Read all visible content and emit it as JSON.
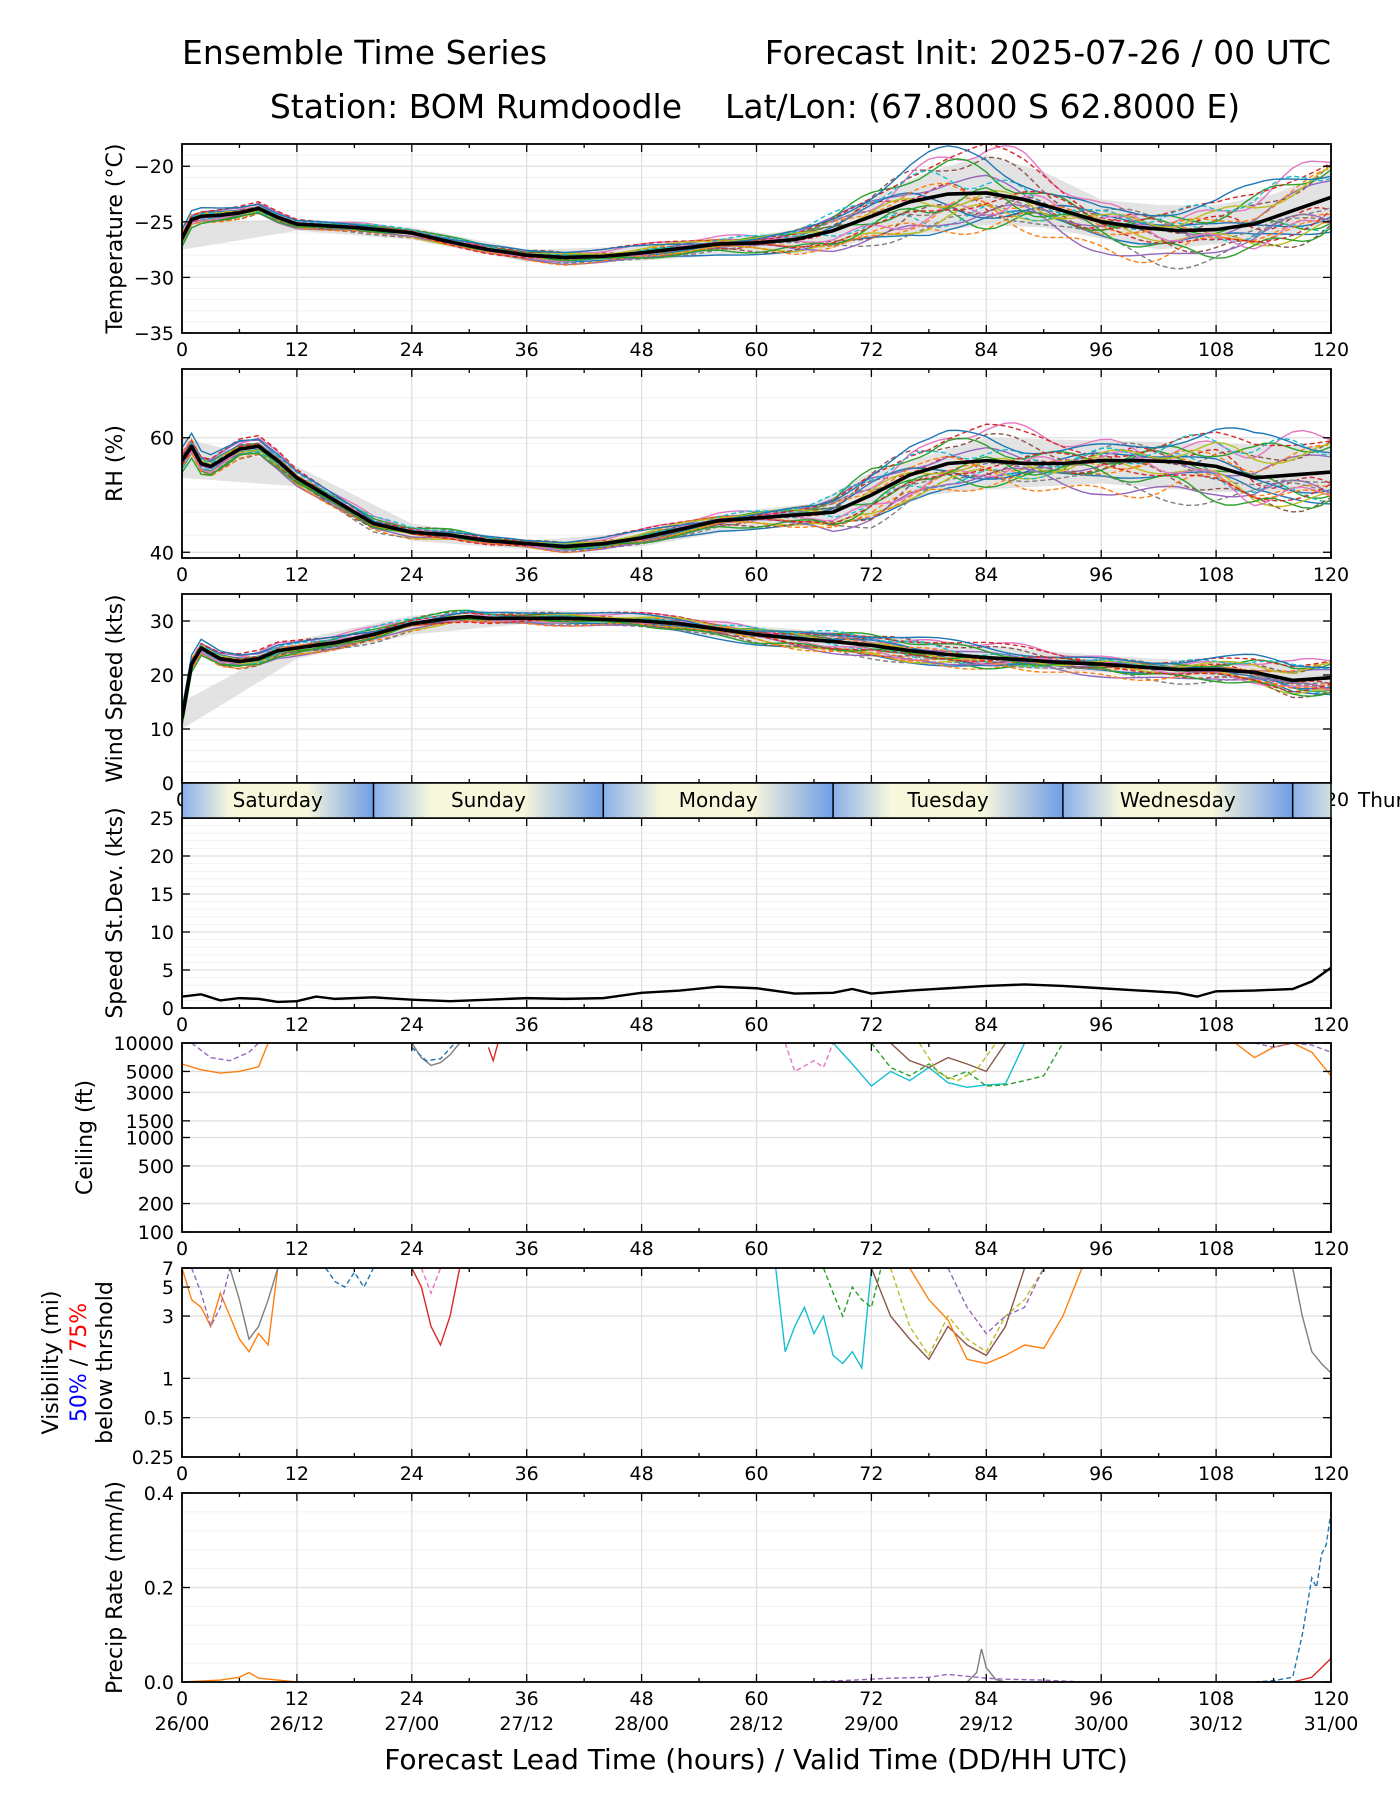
{
  "header": {
    "title_left": "Ensemble Time Series",
    "title_right": "Forecast Init: 2025-07-26 / 00 UTC",
    "station": "Station: BOM Rumdoodle",
    "latlon": "Lat/Lon: (67.8000 S 62.8000 E)"
  },
  "x_axis": {
    "label": "Forecast Lead Time (hours) / Valid Time (DD/HH UTC)",
    "range": [
      0,
      120
    ],
    "ticks": [
      0,
      12,
      24,
      36,
      48,
      60,
      72,
      84,
      96,
      108,
      120
    ],
    "valid_times": [
      "26/00",
      "26/12",
      "27/00",
      "27/12",
      "28/00",
      "28/12",
      "29/00",
      "29/12",
      "30/00",
      "30/12",
      "31/00"
    ]
  },
  "day_band": {
    "days": [
      {
        "label": "Saturday",
        "start": 0,
        "end": 20
      },
      {
        "label": "Sunday",
        "start": 20,
        "end": 44
      },
      {
        "label": "Monday",
        "start": 44,
        "end": 68
      },
      {
        "label": "Tuesday",
        "start": 68,
        "end": 92
      },
      {
        "label": "Wednesday",
        "start": 92,
        "end": 116
      },
      {
        "label": "Thur",
        "start": 116,
        "end": 140
      }
    ]
  },
  "colors": {
    "mean": "#000000",
    "spread": "#d9d9d9",
    "grid": "#e0e0e0",
    "members": [
      "#1f77b4",
      "#ff7f0e",
      "#2ca02c",
      "#d62728",
      "#9467bd",
      "#8c564b",
      "#e377c2",
      "#7f7f7f",
      "#bcbd22",
      "#17becf"
    ],
    "vis_50pct": "#0000ff",
    "vis_75pct": "#ff0000"
  },
  "chart_data": [
    {
      "type": "line",
      "panel": "temperature",
      "ylabel": "Temperature (°C)",
      "ylim": [
        -35,
        -18
      ],
      "yticks": [
        -35,
        -30,
        -25,
        -20
      ],
      "grid": true,
      "ensemble_members": 24,
      "mean": {
        "x": [
          0,
          1,
          2,
          4,
          6,
          8,
          10,
          12,
          18,
          24,
          28,
          32,
          36,
          40,
          44,
          48,
          52,
          56,
          60,
          64,
          68,
          72,
          76,
          80,
          84,
          88,
          92,
          96,
          100,
          104,
          108,
          112,
          116,
          120
        ],
        "y": [
          -26.5,
          -24.8,
          -24.5,
          -24.4,
          -24.2,
          -23.8,
          -24.6,
          -25.2,
          -25.5,
          -26.0,
          -26.8,
          -27.5,
          -28.0,
          -28.2,
          -28.1,
          -27.8,
          -27.4,
          -27.0,
          -26.9,
          -26.6,
          -25.8,
          -24.5,
          -23.2,
          -22.5,
          -22.4,
          -23.0,
          -24.0,
          -25.0,
          -25.5,
          -25.8,
          -25.7,
          -25.2,
          -24.0,
          -22.8
        ]
      },
      "spread": {
        "x": [
          0,
          12,
          24,
          36,
          48,
          60,
          66,
          72,
          78,
          84,
          90,
          96,
          102,
          108,
          114,
          120
        ],
        "lower": [
          -27.5,
          -25.8,
          -26.6,
          -28.6,
          -28.5,
          -27.8,
          -27.8,
          -26.5,
          -26.0,
          -25.3,
          -25.5,
          -26.5,
          -27.5,
          -27.0,
          -26.5,
          -25.0
        ],
        "upper": [
          -25.0,
          -24.8,
          -25.5,
          -27.5,
          -27.2,
          -26.2,
          -25.5,
          -22.8,
          -20.5,
          -19.0,
          -20.5,
          -23.0,
          -23.5,
          -23.5,
          -22.5,
          -20.5
        ]
      }
    },
    {
      "type": "line",
      "panel": "relative_humidity",
      "ylabel": "RH (%)",
      "ylim": [
        39,
        72
      ],
      "yticks": [
        40,
        60
      ],
      "grid": true,
      "ensemble_members": 24,
      "mean": {
        "x": [
          0,
          1,
          2,
          3,
          4,
          6,
          8,
          10,
          12,
          14,
          16,
          18,
          20,
          24,
          28,
          32,
          36,
          40,
          44,
          48,
          52,
          56,
          60,
          64,
          68,
          72,
          76,
          80,
          84,
          88,
          92,
          96,
          100,
          104,
          108,
          112,
          116,
          120
        ],
        "y": [
          56,
          58.5,
          55.5,
          55,
          56,
          58,
          58.5,
          56,
          53,
          51,
          49,
          47,
          45,
          43.5,
          43,
          42,
          41.5,
          41,
          41.5,
          42.5,
          44,
          45.5,
          46,
          46.5,
          47,
          50,
          53.5,
          55.5,
          56,
          55.5,
          55.5,
          56,
          56,
          55.8,
          55,
          53,
          53.5,
          54
        ]
      },
      "spread": {
        "x": [
          0,
          12,
          24,
          36,
          48,
          60,
          66,
          72,
          78,
          84,
          96,
          108,
          120
        ],
        "lower": [
          53,
          51.5,
          42,
          40.5,
          41,
          44.5,
          45,
          46,
          50,
          51,
          52,
          50.5,
          50.5
        ],
        "upper": [
          60,
          55,
          45,
          42,
          43.5,
          47.5,
          48.5,
          54,
          57,
          60,
          59.5,
          59,
          58.5
        ]
      }
    },
    {
      "type": "line",
      "panel": "wind_speed",
      "ylabel": "Wind Speed (kts)",
      "ylim": [
        0,
        35
      ],
      "yticks": [
        0,
        10,
        20,
        30
      ],
      "grid": true,
      "ensemble_members": 24,
      "mean": {
        "x": [
          0,
          1,
          2,
          3,
          4,
          6,
          8,
          10,
          12,
          16,
          20,
          24,
          28,
          30,
          32,
          36,
          40,
          44,
          48,
          52,
          56,
          60,
          64,
          68,
          72,
          76,
          80,
          84,
          88,
          92,
          96,
          100,
          104,
          108,
          112,
          116,
          120
        ],
        "y": [
          12,
          22,
          25,
          24,
          23,
          22.5,
          23,
          24.5,
          25,
          26,
          27.5,
          29.5,
          30.5,
          30.8,
          30.5,
          30.5,
          30.5,
          30.3,
          30,
          29.5,
          28.5,
          27.5,
          26.8,
          26.2,
          25.5,
          24.5,
          23.8,
          23.2,
          22.8,
          22.3,
          22,
          21.5,
          21,
          21,
          20.5,
          19,
          19.5
        ]
      },
      "spread": {
        "x": [
          0,
          12,
          24,
          36,
          48,
          60,
          72,
          84,
          96,
          108,
          120
        ],
        "lower": [
          10,
          23,
          27.5,
          29.5,
          29,
          26,
          24,
          21.5,
          20.5,
          19.5,
          17
        ],
        "upper": [
          15,
          26.5,
          31,
          32,
          31.5,
          29,
          27.5,
          25.5,
          23.5,
          22.5,
          21.5
        ]
      }
    },
    {
      "type": "line",
      "panel": "speed_stdev",
      "ylabel": "Speed St.Dev. (kts)",
      "ylim": [
        0,
        25
      ],
      "yticks": [
        0,
        5,
        10,
        15,
        20,
        25
      ],
      "grid": true,
      "series": [
        {
          "x": [
            0,
            2,
            4,
            6,
            8,
            10,
            12,
            14,
            16,
            20,
            24,
            28,
            32,
            36,
            40,
            44,
            48,
            52,
            56,
            60,
            64,
            68,
            70,
            72,
            76,
            80,
            84,
            88,
            92,
            96,
            100,
            104,
            106,
            108,
            112,
            116,
            118,
            120
          ],
          "y": [
            1.5,
            1.8,
            1.0,
            1.3,
            1.2,
            0.8,
            0.9,
            1.5,
            1.2,
            1.4,
            1.1,
            0.9,
            1.1,
            1.3,
            1.2,
            1.3,
            2.0,
            2.3,
            2.8,
            2.6,
            1.9,
            2.0,
            2.5,
            1.9,
            2.3,
            2.6,
            2.9,
            3.1,
            2.9,
            2.6,
            2.3,
            2.0,
            1.5,
            2.2,
            2.3,
            2.5,
            3.5,
            5.3
          ]
        }
      ]
    },
    {
      "type": "line",
      "panel": "ceiling",
      "ylabel": "Ceiling (ft)",
      "yscale": "log",
      "ylim": [
        100,
        10000
      ],
      "yticks": [
        100,
        200,
        500,
        1000,
        1500,
        3000,
        5000,
        10000
      ],
      "grid": true,
      "ensemble_members": 24,
      "members_partial": [
        {
          "x": [
            0,
            2,
            4,
            6,
            8,
            9
          ],
          "y": [
            6000,
            5200,
            4800,
            5000,
            5600,
            10000
          ]
        },
        {
          "x": [
            1,
            3,
            5,
            7,
            8
          ],
          "y": [
            10000,
            7000,
            6500,
            8000,
            10000
          ]
        },
        {
          "x": [
            24,
            25,
            26,
            27,
            28,
            29
          ],
          "y": [
            10000,
            7000,
            5800,
            6200,
            7500,
            10000
          ]
        },
        {
          "x": [
            24,
            25.5,
            27,
            28.5
          ],
          "y": [
            9000,
            6500,
            6800,
            10000
          ]
        },
        {
          "x": [
            32,
            32.5,
            33
          ],
          "y": [
            9000,
            6500,
            10000
          ]
        },
        {
          "x": [
            63,
            64,
            66,
            67,
            68
          ],
          "y": [
            10000,
            5000,
            6500,
            5500,
            10000
          ]
        },
        {
          "x": [
            68,
            70,
            72,
            74,
            76,
            78,
            80,
            82,
            84,
            86,
            88
          ],
          "y": [
            10000,
            6000,
            3500,
            5000,
            4000,
            5500,
            3800,
            3400,
            3600,
            3700,
            10000
          ]
        },
        {
          "x": [
            72,
            74,
            76,
            78,
            80,
            82,
            84,
            86,
            88,
            90,
            92
          ],
          "y": [
            10000,
            5500,
            4500,
            6000,
            4200,
            5000,
            3500,
            3600,
            4000,
            4500,
            10000
          ]
        },
        {
          "x": [
            74,
            76,
            78,
            80,
            82,
            84,
            86
          ],
          "y": [
            10000,
            6500,
            5500,
            7000,
            6000,
            5000,
            10000
          ]
        },
        {
          "x": [
            77,
            79,
            81,
            83,
            85
          ],
          "y": [
            10000,
            4800,
            4000,
            5200,
            10000
          ]
        },
        {
          "x": [
            110,
            112,
            114,
            116,
            118,
            120
          ],
          "y": [
            10000,
            7000,
            9000,
            10000,
            8000,
            4500
          ]
        },
        {
          "x": [
            112,
            114,
            116,
            118,
            120
          ],
          "y": [
            10000,
            9000,
            10000,
            9500,
            8000
          ]
        }
      ]
    },
    {
      "type": "line",
      "panel": "visibility",
      "ylabel_line1": "Visibility (mi)",
      "ylabel_50": "50%",
      "ylabel_sep": " / ",
      "ylabel_75": "75%",
      "ylabel_line3": "below thrshold",
      "yscale": "log",
      "ylim": [
        0.25,
        7
      ],
      "yticks": [
        0.25,
        0.5,
        1,
        3,
        5,
        7
      ],
      "grid": true,
      "ensemble_members": 24,
      "members_partial": [
        {
          "x": [
            0,
            1,
            2,
            3,
            4,
            5,
            6,
            7,
            8,
            9,
            10
          ],
          "y": [
            7,
            4,
            3.5,
            2.5,
            4.5,
            3,
            2,
            1.6,
            2.2,
            1.8,
            7
          ]
        },
        {
          "x": [
            1,
            2,
            3,
            4,
            5
          ],
          "y": [
            7,
            4.5,
            2.5,
            3.5,
            7
          ]
        },
        {
          "x": [
            5,
            6,
            7,
            8,
            9,
            10
          ],
          "y": [
            7,
            4,
            2,
            2.5,
            4,
            7
          ]
        },
        {
          "x": [
            15,
            16,
            17,
            18,
            19,
            20
          ],
          "y": [
            7,
            5.5,
            5,
            6.5,
            5,
            7
          ]
        },
        {
          "x": [
            24,
            25,
            26,
            27,
            28,
            29
          ],
          "y": [
            7,
            5,
            2.5,
            1.8,
            3,
            7
          ]
        },
        {
          "x": [
            25,
            26,
            27
          ],
          "y": [
            7,
            4.5,
            7
          ]
        },
        {
          "x": [
            62,
            63,
            64,
            65,
            66,
            67,
            68,
            69,
            70,
            71,
            72
          ],
          "y": [
            7,
            1.6,
            2.5,
            3.5,
            2.2,
            3,
            1.5,
            1.3,
            1.6,
            1.2,
            7
          ]
        },
        {
          "x": [
            67,
            68,
            69,
            70,
            71,
            72,
            73
          ],
          "y": [
            7,
            4.5,
            3,
            5,
            4,
            3.5,
            7
          ]
        },
        {
          "x": [
            72,
            74,
            76,
            78,
            80,
            82,
            84,
            86,
            88
          ],
          "y": [
            7,
            3,
            2,
            1.4,
            2.5,
            1.8,
            1.5,
            2.5,
            7
          ]
        },
        {
          "x": [
            74,
            76,
            78,
            80,
            82,
            84,
            86,
            88,
            90
          ],
          "y": [
            7,
            2.5,
            1.5,
            3,
            2,
            1.6,
            3,
            4,
            7
          ]
        },
        {
          "x": [
            76,
            78,
            80,
            82,
            84,
            86,
            88,
            90,
            92,
            94
          ],
          "y": [
            7,
            4,
            2.8,
            1.4,
            1.3,
            1.5,
            1.8,
            1.7,
            3,
            7
          ]
        },
        {
          "x": [
            80,
            82,
            84,
            86,
            88,
            90
          ],
          "y": [
            7,
            3.5,
            2.2,
            3,
            3.5,
            7
          ]
        },
        {
          "x": [
            116,
            117,
            118,
            119,
            120
          ],
          "y": [
            7,
            3,
            1.6,
            1.3,
            1.1
          ]
        }
      ]
    },
    {
      "type": "line",
      "panel": "precip_rate",
      "ylabel": "Precip Rate (mm/h)",
      "ylim": [
        0,
        0.4
      ],
      "yticks": [
        0.0,
        0.2,
        0.4
      ],
      "grid": true,
      "ensemble_members": 24,
      "members_partial": [
        {
          "x": [
            0,
            4,
            6,
            7,
            8,
            10,
            12
          ],
          "y": [
            0,
            0.004,
            0.01,
            0.02,
            0.008,
            0.004,
            0
          ]
        },
        {
          "x": [
            66,
            70,
            74,
            78,
            80,
            82,
            84,
            86,
            90,
            94
          ],
          "y": [
            0,
            0.004,
            0.008,
            0.01,
            0.016,
            0.012,
            0.008,
            0.006,
            0.004,
            0
          ]
        },
        {
          "x": [
            82,
            83,
            83.5,
            84,
            85,
            86
          ],
          "y": [
            0,
            0.02,
            0.07,
            0.03,
            0.005,
            0
          ]
        },
        {
          "x": [
            112,
            114,
            116,
            117,
            118,
            118.5,
            119,
            119.5,
            120
          ],
          "y": [
            0,
            0.003,
            0.01,
            0.1,
            0.22,
            0.2,
            0.27,
            0.29,
            0.36
          ]
        },
        {
          "x": [
            116,
            118,
            120
          ],
          "y": [
            0,
            0.01,
            0.05
          ]
        }
      ]
    }
  ]
}
